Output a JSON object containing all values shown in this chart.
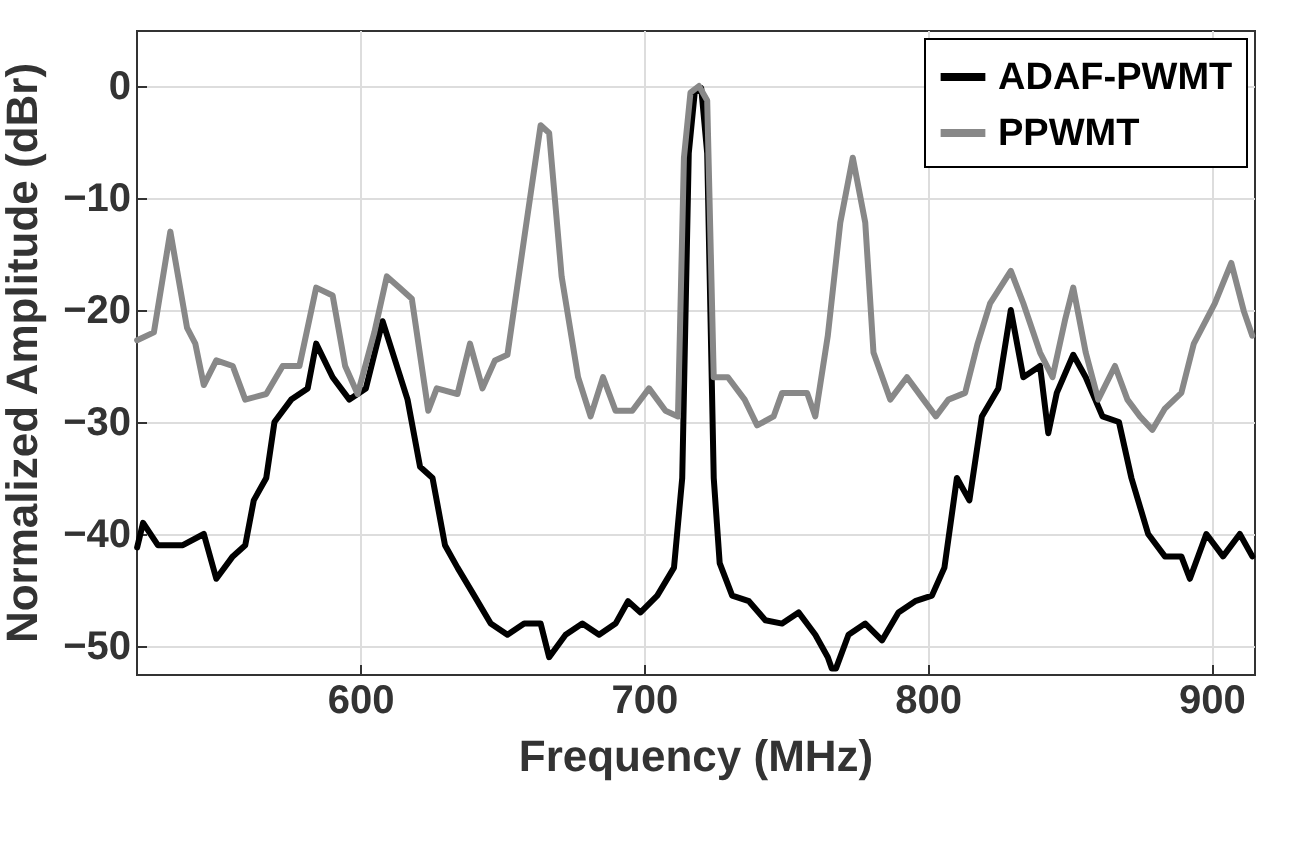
{
  "chart_data": {
    "type": "line",
    "xlabel": "Frequency (MHz)",
    "ylabel": "Normalized Amplitude (dBr)",
    "xlim": [
      521,
      915
    ],
    "ylim": [
      -52.5,
      5
    ],
    "xticks": [
      600,
      700,
      800,
      900
    ],
    "yticks": [
      -50,
      -40,
      -30,
      -20,
      -10,
      0
    ],
    "grid": true,
    "legend": "top right",
    "series": [
      {
        "name": "ADAF-PWMT",
        "color": "#000000",
        "x": [
          521.4,
          523.5,
          528.7,
          537.5,
          544.9,
          549.3,
          555.1,
          559.5,
          562.5,
          566.9,
          569.8,
          575.7,
          581.5,
          584.5,
          590.3,
          596.2,
          602,
          607.9,
          612.3,
          616.7,
          621.1,
          625.5,
          629.9,
          634.3,
          640.2,
          646,
          651.9,
          657.8,
          663.6,
          666.6,
          672.4,
          678.3,
          684.2,
          690,
          694.4,
          698.8,
          704.7,
          710.6,
          713.5,
          715.8,
          717.9,
          720.2,
          722.3,
          724.6,
          726.7,
          731.1,
          737,
          742.8,
          748.7,
          754.5,
          760.4,
          764.8,
          766.2,
          767.7,
          772.1,
          778,
          783.9,
          789.7,
          795.6,
          801.5,
          805.9,
          810.3,
          814.7,
          819.1,
          824.9,
          829.3,
          833.7,
          839.6,
          842.5,
          845.5,
          851.3,
          855.7,
          861.6,
          867.4,
          871.8,
          877.7,
          883.6,
          889.4,
          892.4,
          898.2,
          904.1,
          910,
          914.4
        ],
        "values": [
          -41.2,
          -39,
          -41,
          -41,
          -40,
          -44,
          -42,
          -41,
          -37,
          -35,
          -30,
          -28,
          -27,
          -23,
          -26,
          -28,
          -27,
          -21,
          -24.5,
          -28,
          -34,
          -35,
          -41,
          -43,
          -45.5,
          -48,
          -49,
          -48,
          -48,
          -51,
          -49,
          -48,
          -49,
          -48,
          -46,
          -47,
          -45.5,
          -43,
          -35,
          -6,
          -0.6,
          -0.2,
          -6,
          -35,
          -42.6,
          -45.5,
          -46,
          -47.7,
          -48,
          -47,
          -49,
          -51,
          -52,
          -52,
          -49,
          -48,
          -49.5,
          -47,
          -46,
          -45.5,
          -43,
          -35,
          -37,
          -29.5,
          -27,
          -20,
          -26,
          -25,
          -31,
          -27.4,
          -24,
          -26,
          -29.5,
          -30,
          -35,
          -40,
          -42,
          -42,
          -44,
          -40,
          -42,
          -40,
          -42
        ]
      },
      {
        "name": "PPWMT",
        "color": "#888888",
        "x": [
          521.4,
          527.3,
          533.1,
          539,
          541.9,
          544.9,
          549.3,
          555.1,
          559.5,
          566.9,
          572.7,
          578.6,
          584.5,
          590.3,
          594.7,
          599.1,
          605,
          609.4,
          613.8,
          618.2,
          624,
          627,
          634.3,
          638.7,
          643.1,
          647.5,
          651.9,
          657.8,
          663.6,
          666.6,
          671,
          676.8,
          681.2,
          685.6,
          690,
          695.9,
          701.8,
          707.6,
          712,
          714.1,
          716.4,
          719.4,
          722.3,
          724.6,
          729.6,
          735.5,
          739.9,
          745.7,
          748.7,
          757.5,
          760.4,
          764.8,
          769.2,
          773.6,
          778,
          780.9,
          786.8,
          792.7,
          798.5,
          802.9,
          807.3,
          813.2,
          817.6,
          822,
          829.3,
          833.7,
          839.6,
          844,
          848.4,
          851.3,
          855.7,
          860.1,
          866,
          870.4,
          874.8,
          879.2,
          883.6,
          889.4,
          893.8,
          901.2,
          907,
          911.4,
          914.4
        ],
        "values": [
          -22.7,
          -22,
          -13,
          -21.6,
          -23,
          -26.7,
          -24.5,
          -25,
          -28,
          -27.5,
          -25,
          -25,
          -18,
          -18.7,
          -25,
          -27.5,
          -22,
          -17,
          -18,
          -19,
          -29,
          -27,
          -27.5,
          -23,
          -27,
          -24.5,
          -24,
          -13.6,
          -3.5,
          -4.2,
          -17,
          -26,
          -29.5,
          -26,
          -29,
          -29,
          -27,
          -29,
          -29.5,
          -6.4,
          -0.6,
          0,
          -1.3,
          -26,
          -26,
          -28,
          -30.3,
          -29.5,
          -27.4,
          -27.4,
          -29.5,
          -22.3,
          -12.2,
          -6.4,
          -12.2,
          -23.8,
          -28,
          -26,
          -28,
          -29.5,
          -28,
          -27.4,
          -23,
          -19.4,
          -16.5,
          -19.4,
          -23.8,
          -26,
          -20.9,
          -18,
          -23.8,
          -28,
          -25,
          -28,
          -29.5,
          -30.7,
          -28.8,
          -27.4,
          -23,
          -19.4,
          -15.8,
          -20.1,
          -22.3
        ]
      }
    ]
  }
}
